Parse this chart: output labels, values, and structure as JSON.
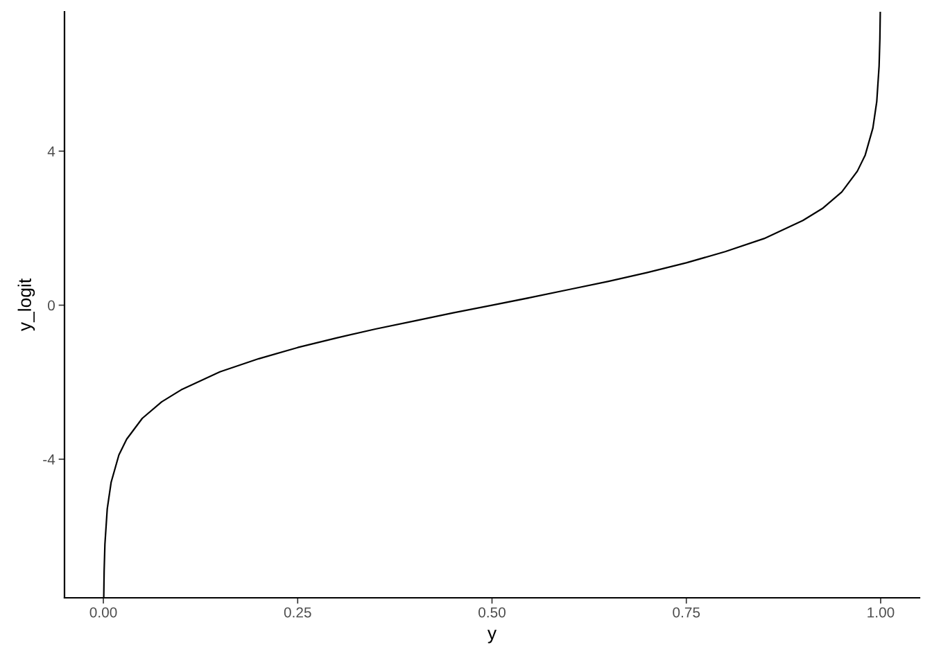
{
  "chart_data": {
    "type": "line",
    "xlabel": "y",
    "ylabel": "y_logit",
    "x": [
      0.0005,
      0.001,
      0.002,
      0.005,
      0.01,
      0.02,
      0.03,
      0.05,
      0.075,
      0.1,
      0.15,
      0.2,
      0.25,
      0.3,
      0.35,
      0.4,
      0.45,
      0.5,
      0.55,
      0.6,
      0.65,
      0.7,
      0.75,
      0.8,
      0.85,
      0.9,
      0.925,
      0.95,
      0.97,
      0.98,
      0.99,
      0.995,
      0.998,
      0.999,
      0.9995
    ],
    "series": [
      {
        "color": "#000000",
        "values": [
          -7.6,
          -6.91,
          -6.21,
          -5.29,
          -4.6,
          -3.89,
          -3.48,
          -2.94,
          -2.51,
          -2.2,
          -1.73,
          -1.39,
          -1.1,
          -0.85,
          -0.62,
          -0.41,
          -0.2,
          0,
          0.2,
          0.41,
          0.62,
          0.85,
          1.1,
          1.39,
          1.73,
          2.2,
          2.51,
          2.94,
          3.48,
          3.89,
          4.6,
          5.29,
          6.21,
          6.91,
          7.6
        ]
      }
    ],
    "xlim": [
      -0.05,
      1.05
    ],
    "ylim": [
      -7.6,
      7.62
    ],
    "xticks": [
      {
        "value": 0,
        "label": "0.00"
      },
      {
        "value": 0.25,
        "label": "0.25"
      },
      {
        "value": 0.5,
        "label": "0.50"
      },
      {
        "value": 0.75,
        "label": "0.75"
      },
      {
        "value": 1,
        "label": "1.00"
      }
    ],
    "yticks": [
      {
        "value": -4,
        "label": "-4"
      },
      0,
      4
    ],
    "grid": false,
    "legend": false,
    "marker": "none",
    "line_style": "solid"
  }
}
